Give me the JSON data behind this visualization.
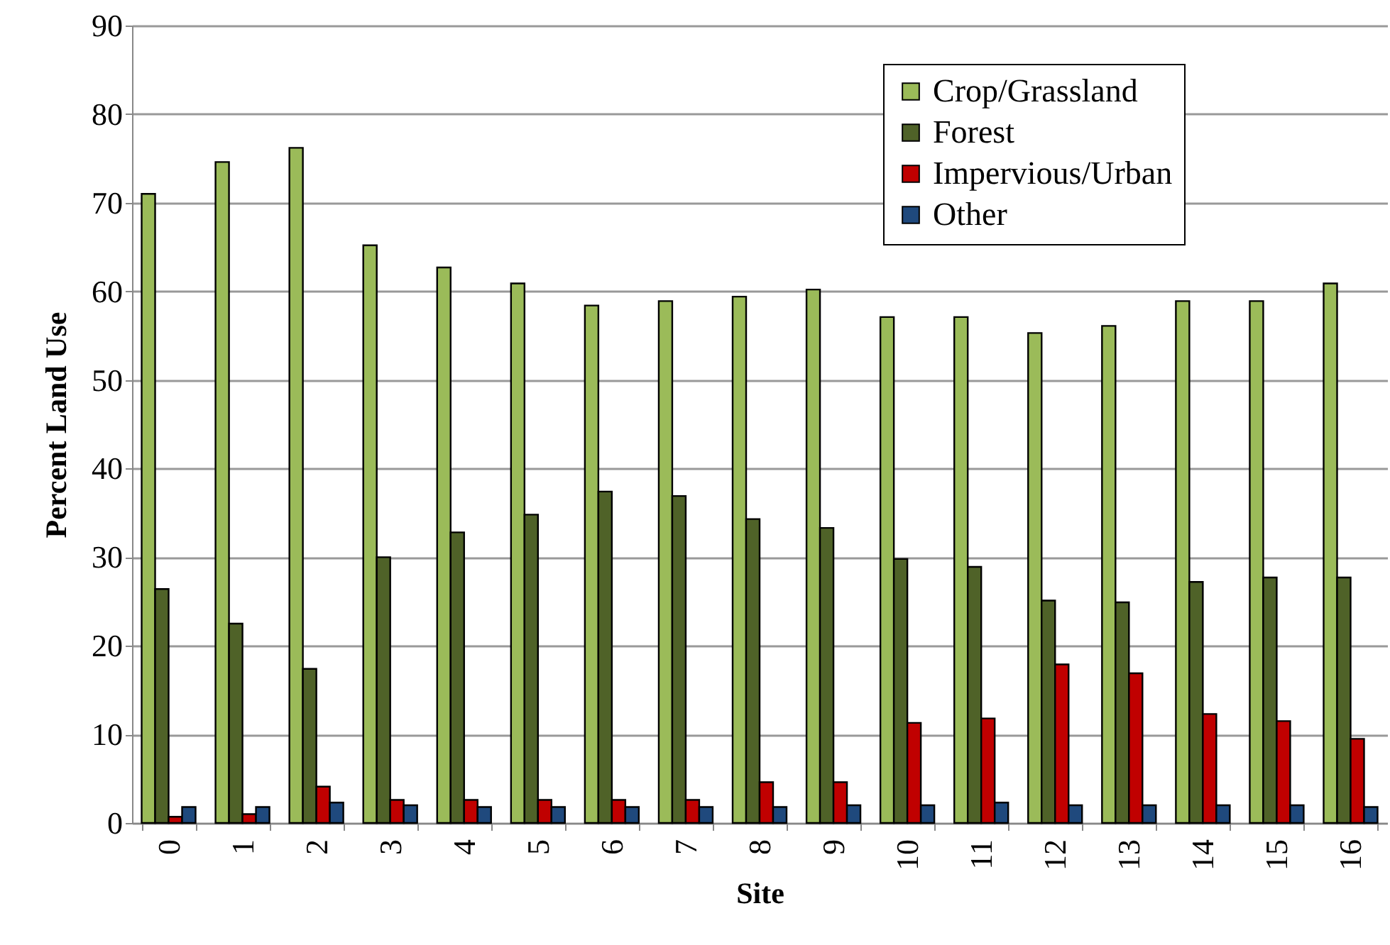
{
  "chart_data": {
    "type": "bar",
    "xlabel": "Site",
    "ylabel": "Percent Land Use",
    "categories": [
      "0",
      "1",
      "2",
      "3",
      "4",
      "5",
      "6",
      "7",
      "8",
      "9",
      "10",
      "11",
      "12",
      "13",
      "14",
      "15",
      "16"
    ],
    "series": [
      {
        "name": "Crop/Grassland",
        "color": "#9bbb59",
        "values": [
          71,
          74.6,
          76.2,
          65.2,
          62.7,
          60.9,
          58.4,
          58.9,
          59.4,
          60.2,
          57.1,
          57.1,
          55.3,
          56.1,
          58.9,
          58.9,
          60.9
        ]
      },
      {
        "name": "Forest",
        "color": "#4f6228",
        "values": [
          26.4,
          22.5,
          17.4,
          30,
          32.8,
          34.8,
          37.4,
          36.9,
          34.3,
          33.3,
          29.8,
          28.9,
          25.1,
          24.9,
          27.2,
          27.7,
          27.7
        ]
      },
      {
        "name": "Impervious/Urban",
        "color": "#c00000",
        "values": [
          0.7,
          1.0,
          4.1,
          2.6,
          2.6,
          2.6,
          2.6,
          2.6,
          4.6,
          4.6,
          11.3,
          11.8,
          17.9,
          16.9,
          12.3,
          11.5,
          9.5
        ]
      },
      {
        "name": "Other",
        "color": "#1f497d",
        "values": [
          1.8,
          1.8,
          2.3,
          2.0,
          1.8,
          1.8,
          1.8,
          1.8,
          1.8,
          2.0,
          2.0,
          2.3,
          2.0,
          2.0,
          2.0,
          2.0,
          1.8
        ]
      }
    ],
    "ylim": [
      0,
      90
    ],
    "yticks": [
      0,
      10,
      20,
      30,
      40,
      50,
      60,
      70,
      80,
      90
    ],
    "grid": "y",
    "legend": "top right"
  }
}
